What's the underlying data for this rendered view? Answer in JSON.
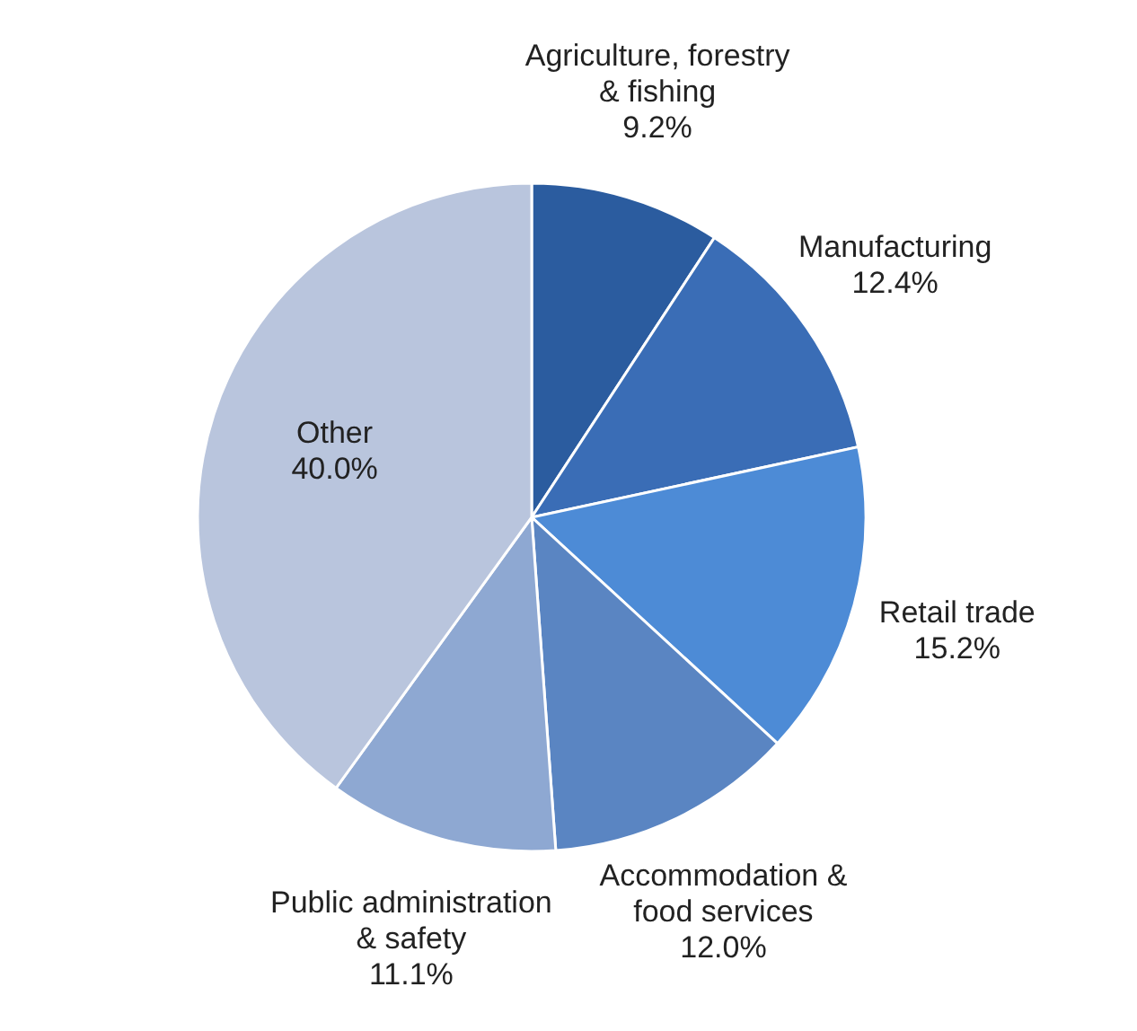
{
  "chart_data": {
    "type": "pie",
    "categories": [
      "Agriculture, forestry\n& fishing",
      "Manufacturing",
      "Retail trade",
      "Accommodation &\nfood services",
      "Public administration\n& safety",
      "Other"
    ],
    "values": [
      9.2,
      12.4,
      15.2,
      12.0,
      11.1,
      40.0
    ],
    "colors": [
      "#2b5c9f",
      "#3a6db6",
      "#4d8bd6",
      "#5a85c2",
      "#8ea8d2",
      "#b9c5dd"
    ],
    "value_labels": [
      "9.2%",
      "12.4%",
      "15.2%",
      "12.0%",
      "11.1%",
      "40.0%"
    ]
  }
}
